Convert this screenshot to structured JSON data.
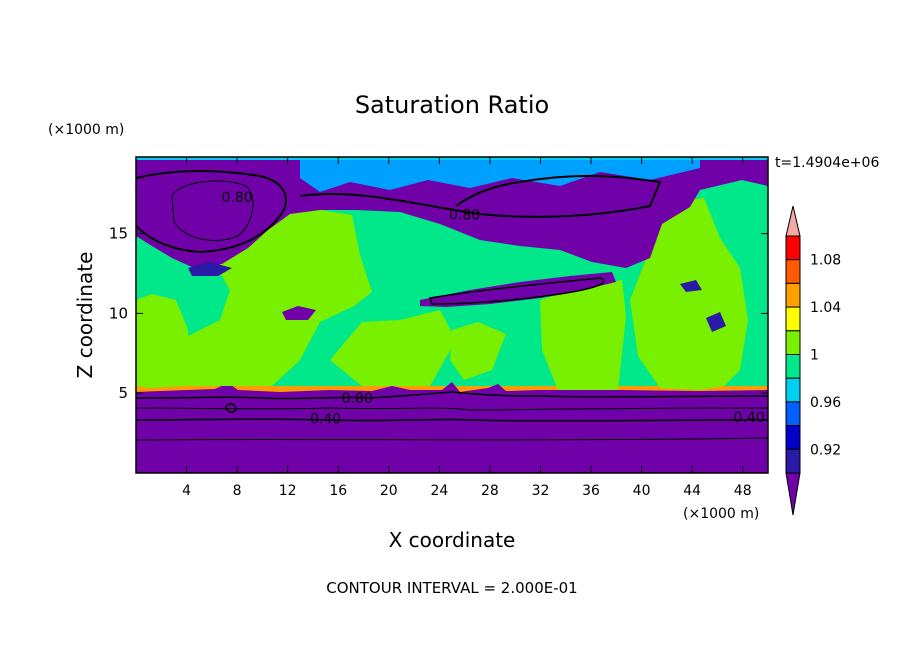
{
  "chart_data": {
    "type": "contour",
    "title": "Saturation Ratio",
    "xlabel": "X coordinate",
    "ylabel": "Z coordinate",
    "x_unit": "(×1000 m)",
    "y_unit": "(×1000 m)",
    "time_label": "t=1.4904e+06",
    "footer": "CONTOUR INTERVAL = 2.000E-01",
    "xlim": [
      0,
      50
    ],
    "ylim": [
      0,
      19.8
    ],
    "x_ticks": [
      4,
      8,
      12,
      16,
      20,
      24,
      28,
      32,
      36,
      40,
      44,
      48
    ],
    "y_ticks": [
      5,
      10,
      15
    ],
    "colorbar": {
      "levels": [
        0.92,
        0.94,
        0.96,
        0.98,
        1.0,
        1.02,
        1.04,
        1.06,
        1.08
      ],
      "labels": [
        "0.92",
        "0.96",
        "1",
        "1.04",
        "1.08"
      ],
      "colors": [
        "#7000a8",
        "#2a1aa8",
        "#0000c8",
        "#0060ff",
        "#00d0f0",
        "#00e88a",
        "#78f000",
        "#ffff00",
        "#ffa000",
        "#ff5a00",
        "#ff0000",
        "#f4a8a8"
      ]
    },
    "contour_labels": [
      {
        "x": 8,
        "z": 17.3,
        "text": "0.80"
      },
      {
        "x": 26,
        "z": 16.2,
        "text": "0.80"
      },
      {
        "x": 17.5,
        "z": 4.7,
        "text": "0.80"
      },
      {
        "x": 15,
        "z": 3.4,
        "text": "0.40"
      },
      {
        "x": 48.5,
        "z": 3.5,
        "text": "0.40"
      }
    ]
  }
}
